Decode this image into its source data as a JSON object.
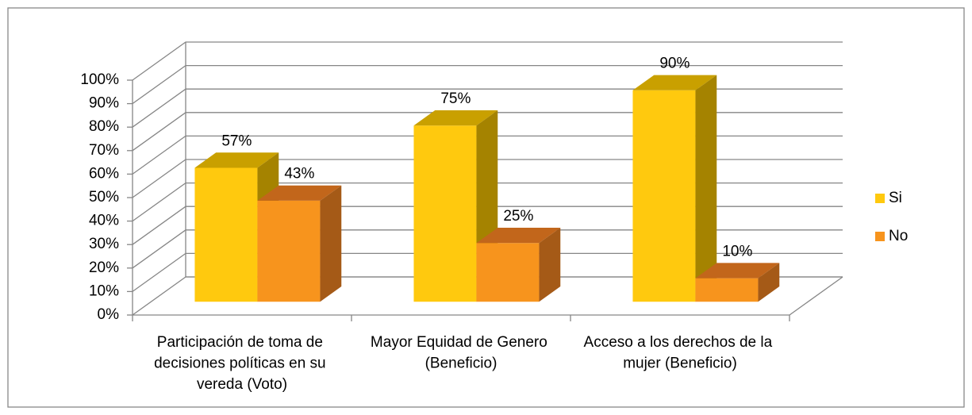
{
  "chart_data": {
    "type": "bar3d",
    "categories": [
      "Participación de toma de decisiones políticas en su vereda (Voto)",
      "Mayor Equidad de Genero (Beneficio)",
      "Acceso a los derechos de la mujer (Beneficio)"
    ],
    "series": [
      {
        "name": "Si",
        "color": "#ffc90e",
        "top": "#c9a000",
        "side": "#a58300",
        "values": [
          57,
          75,
          90
        ],
        "value_labels": [
          "57%",
          "75%",
          "90%"
        ]
      },
      {
        "name": "No",
        "color": "#f7941d",
        "top": "#c2661b",
        "side": "#a55a17",
        "values": [
          43,
          25,
          10
        ],
        "value_labels": [
          "43%",
          "25%",
          "10%"
        ]
      }
    ],
    "ylim": [
      0,
      100
    ],
    "yticks": [
      {
        "value": 0,
        "label": "0%"
      },
      {
        "value": 10,
        "label": "10%"
      },
      {
        "value": 20,
        "label": "20%"
      },
      {
        "value": 30,
        "label": "30%"
      },
      {
        "value": 40,
        "label": "40%"
      },
      {
        "value": 50,
        "label": "50%"
      },
      {
        "value": 60,
        "label": "60%"
      },
      {
        "value": 70,
        "label": "70%"
      },
      {
        "value": 80,
        "label": "80%"
      },
      {
        "value": 90,
        "label": "90%"
      },
      {
        "value": 100,
        "label": "100%"
      }
    ],
    "grid": true,
    "legend": "right"
  }
}
